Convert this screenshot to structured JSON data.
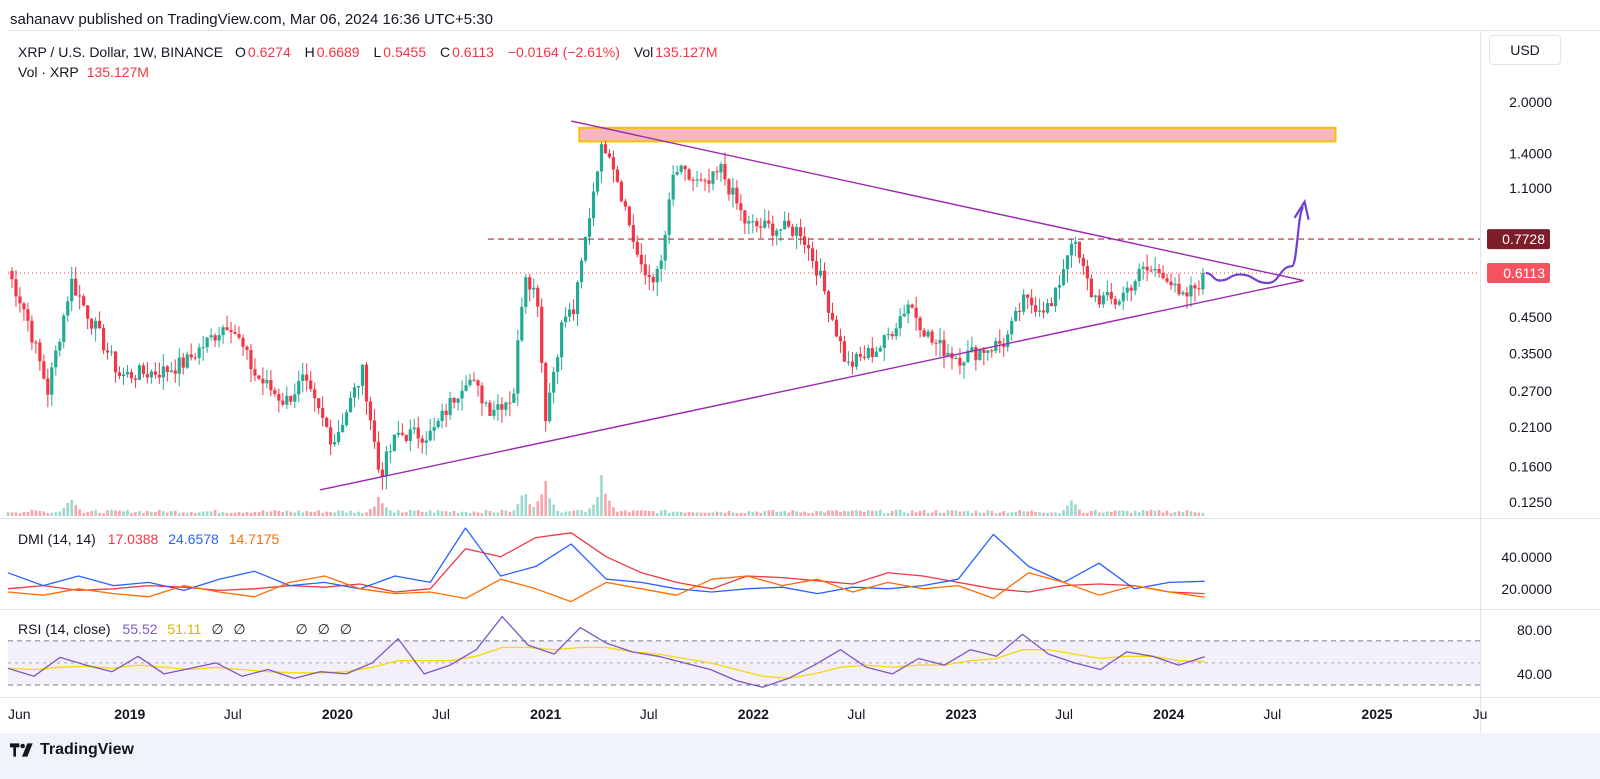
{
  "header": {
    "publish_line": "sahanavv published on TradingView.com, Mar 06, 2024 16:36 UTC+5:30"
  },
  "legend": {
    "symbol": "XRP / U.S. Dollar, 1W, BINANCE",
    "o_label": "O",
    "o_value": "0.6274",
    "h_label": "H",
    "h_value": "0.6689",
    "l_label": "L",
    "l_value": "0.5455",
    "c_label": "C",
    "c_value": "0.6113",
    "change": "−0.0164 (−2.61%)",
    "vol_label": "Vol",
    "vol_value": "135.127M",
    "vol_line_label": "Vol · XRP",
    "vol_line_value": "135.127M"
  },
  "currency_button": "USD",
  "colors": {
    "up": "#22ab94",
    "down": "#f23645",
    "triangle": "#9c27b0",
    "zone_fill": "#f8b6c0",
    "zone_border": "#f5c000",
    "resistance_line": "#a82e3a",
    "price_badge": "#f7525f",
    "res_badge": "#7e1d2a",
    "dmi_plus": "#2962ff",
    "dmi_minus": "#f23645",
    "adx": "#ff6d00",
    "rsi": "#7e57c2",
    "rsi_ma": "#f5d90a",
    "arrow": "#6f3fd6"
  },
  "chart_data": [
    {
      "type": "candlestick",
      "title": "XRP / U.S. Dollar, 1W, BINANCE",
      "y_scale": "log",
      "ylim": [
        0.112,
        2.2
      ],
      "y_ticks": [
        "2.0000",
        "1.4000",
        "1.1000",
        "0.4500",
        "0.3500",
        "0.2700",
        "0.2100",
        "0.1600",
        "0.1250"
      ],
      "y_tick_values": [
        2.0,
        1.4,
        1.1,
        0.45,
        0.35,
        0.27,
        0.21,
        0.16,
        0.125
      ],
      "x_ticks": [
        "Jun",
        "2019",
        "Jul",
        "2020",
        "Jul",
        "2021",
        "Jul",
        "2022",
        "Jul",
        "2023",
        "Jul",
        "2024",
        "Jul",
        "2025",
        "Ju"
      ],
      "x_tick_dates": [
        "2018-06-01",
        "2019-01-01",
        "2019-07-01",
        "2020-01-01",
        "2020-07-01",
        "2021-01-01",
        "2021-07-01",
        "2022-01-01",
        "2022-07-01",
        "2023-01-01",
        "2023-07-01",
        "2024-01-01",
        "2024-07-01",
        "2025-01-01",
        "2025-07-01"
      ],
      "xlim": [
        "2018-06-01",
        "2025-07-01"
      ],
      "last_price": "0.6113",
      "resistance_price": "0.7728",
      "resistance_value": 0.7728,
      "supply_zone": [
        1.52,
        1.67
      ],
      "supply_zone_dates": [
        "2021-03-01",
        "2024-10-20"
      ],
      "triangle_upper": [
        [
          "2021-02-15",
          1.75
        ],
        [
          "2024-08-25",
          0.58
        ]
      ],
      "triangle_lower": [
        [
          "2019-12-01",
          0.136
        ],
        [
          "2024-08-25",
          0.58
        ]
      ],
      "projection": [
        [
          "2024-03-06",
          0.611
        ],
        [
          "2024-03-31",
          0.58
        ],
        [
          "2024-05-05",
          0.605
        ],
        [
          "2024-06-23",
          0.57
        ],
        [
          "2024-08-04",
          0.64
        ],
        [
          "2024-08-25",
          0.96
        ]
      ],
      "ohlc_anchors": [
        [
          "2018-06-01",
          0.62
        ],
        [
          "2018-07-01",
          0.47
        ],
        [
          "2018-08-10",
          0.27
        ],
        [
          "2018-09-20",
          0.58
        ],
        [
          "2018-10-20",
          0.46
        ],
        [
          "2018-12-15",
          0.3
        ],
        [
          "2019-03-01",
          0.31
        ],
        [
          "2019-04-10",
          0.33
        ],
        [
          "2019-06-25",
          0.44
        ],
        [
          "2019-08-10",
          0.3
        ],
        [
          "2019-10-01",
          0.25
        ],
        [
          "2019-11-01",
          0.29
        ],
        [
          "2019-12-25",
          0.19
        ],
        [
          "2020-02-15",
          0.31
        ],
        [
          "2020-03-15",
          0.15
        ],
        [
          "2020-04-15",
          0.2
        ],
        [
          "2020-06-15",
          0.2
        ],
        [
          "2020-08-15",
          0.3
        ],
        [
          "2020-09-25",
          0.24
        ],
        [
          "2020-11-05",
          0.26
        ],
        [
          "2020-11-25",
          0.63
        ],
        [
          "2020-12-20",
          0.5
        ],
        [
          "2020-12-30",
          0.22
        ],
        [
          "2021-02-01",
          0.45
        ],
        [
          "2021-02-20",
          0.47
        ],
        [
          "2021-04-05",
          1.4
        ],
        [
          "2021-04-20",
          1.5
        ],
        [
          "2021-05-15",
          1.05
        ],
        [
          "2021-06-20",
          0.6
        ],
        [
          "2021-07-20",
          0.6
        ],
        [
          "2021-08-15",
          1.25
        ],
        [
          "2021-10-10",
          1.1
        ],
        [
          "2021-11-05",
          1.25
        ],
        [
          "2021-12-20",
          0.85
        ],
        [
          "2022-03-25",
          0.82
        ],
        [
          "2022-04-25",
          0.62
        ],
        [
          "2022-06-15",
          0.32
        ],
        [
          "2022-08-15",
          0.37
        ],
        [
          "2022-10-01",
          0.5
        ],
        [
          "2022-11-10",
          0.38
        ],
        [
          "2022-12-28",
          0.34
        ],
        [
          "2023-03-20",
          0.38
        ],
        [
          "2023-04-20",
          0.5
        ],
        [
          "2023-06-10",
          0.48
        ],
        [
          "2023-07-14",
          0.78
        ],
        [
          "2023-08-20",
          0.52
        ],
        [
          "2023-10-01",
          0.5
        ],
        [
          "2023-11-15",
          0.62
        ],
        [
          "2023-12-25",
          0.62
        ],
        [
          "2024-01-22",
          0.5
        ],
        [
          "2024-02-19",
          0.56
        ],
        [
          "2024-03-04",
          0.611
        ]
      ],
      "volume_peaks": [
        [
          "2018-09-20",
          0.55
        ],
        [
          "2020-03-15",
          0.6
        ],
        [
          "2020-11-25",
          0.75
        ],
        [
          "2020-12-30",
          1.0
        ],
        [
          "2021-04-10",
          1.0
        ],
        [
          "2023-07-14",
          0.45
        ]
      ]
    },
    {
      "type": "line",
      "title": "DMI (14, 14)",
      "values": [
        "17.0388",
        "24.6578",
        "14.7175"
      ],
      "series": [
        {
          "key": "minus",
          "values": [
            20,
            22,
            19,
            20,
            22,
            21,
            19,
            20,
            22,
            21,
            23,
            18,
            20,
            45,
            40,
            52,
            55,
            40,
            30,
            24,
            20,
            28,
            27,
            25,
            23,
            30,
            28,
            24,
            20,
            18,
            22,
            23,
            22,
            18,
            17
          ]
        },
        {
          "key": "plus",
          "values": [
            30,
            22,
            28,
            22,
            24,
            19,
            26,
            31,
            22,
            24,
            20,
            28,
            24,
            58,
            28,
            34,
            48,
            26,
            24,
            20,
            18,
            20,
            21,
            17,
            21,
            20,
            22,
            26,
            54,
            34,
            24,
            36,
            20,
            24,
            24.66
          ]
        },
        {
          "key": "adx",
          "values": [
            18,
            16,
            20,
            17,
            15,
            22,
            18,
            15,
            24,
            28,
            20,
            17,
            18,
            14,
            26,
            20,
            12,
            24,
            20,
            16,
            26,
            28,
            22,
            26,
            18,
            24,
            20,
            22,
            14,
            30,
            24,
            16,
            22,
            18,
            14.72
          ]
        }
      ],
      "y_ticks": [
        "40.0000",
        "20.0000"
      ],
      "y_tick_values": [
        40,
        20
      ],
      "ylim": [
        8,
        63
      ]
    },
    {
      "type": "line",
      "title": "RSI (14, close)",
      "values": [
        "55.52",
        "51.11",
        "∅",
        "∅"
      ],
      "trailing": [
        "∅",
        "∅",
        "∅"
      ],
      "series": [
        {
          "key": "rsi",
          "values": [
            45,
            38,
            55,
            48,
            42,
            56,
            40,
            45,
            50,
            38,
            44,
            36,
            42,
            40,
            50,
            72,
            40,
            48,
            62,
            92,
            66,
            58,
            82,
            68,
            60,
            56,
            50,
            44,
            34,
            28,
            36,
            48,
            62,
            46,
            40,
            54,
            48,
            62,
            56,
            76,
            58,
            50,
            44,
            60,
            56,
            48,
            55.52
          ]
        },
        {
          "key": "rsi_ma",
          "values": [
            45,
            44,
            46,
            47,
            45,
            48,
            46,
            44,
            46,
            44,
            42,
            41,
            41,
            42,
            46,
            52,
            52,
            52,
            56,
            64,
            64,
            62,
            64,
            64,
            60,
            58,
            54,
            50,
            44,
            38,
            36,
            40,
            46,
            48,
            46,
            48,
            48,
            52,
            54,
            62,
            62,
            58,
            54,
            56,
            56,
            52,
            51.11
          ]
        }
      ],
      "y_ticks": [
        "80.00",
        "40.00"
      ],
      "y_tick_values": [
        80,
        40
      ],
      "ylim": [
        20,
        98
      ]
    }
  ],
  "branding": "TradingView"
}
